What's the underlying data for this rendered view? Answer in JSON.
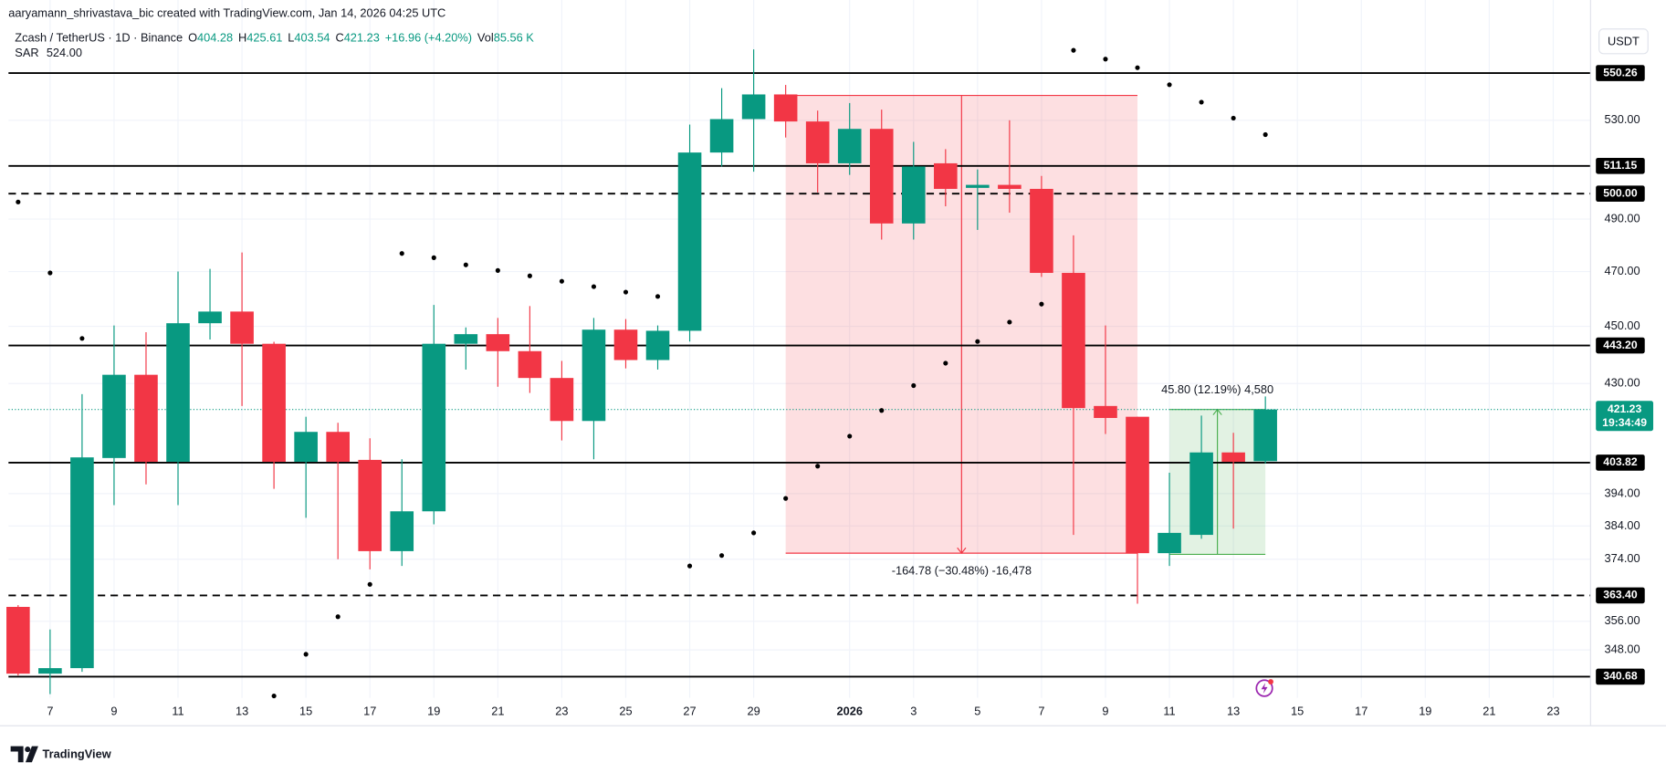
{
  "header": {
    "attribution": "aaryamann_shrivastava_bic created with TradingView.com, Jan 14, 2026 04:25 UTC",
    "symbol": "Zcash / TetherUS · 1D · Binance",
    "ohlc": [
      {
        "key": "O",
        "value": "404.28"
      },
      {
        "key": "H",
        "value": "425.61"
      },
      {
        "key": "L",
        "value": "403.54"
      },
      {
        "key": "C",
        "value": "421.23"
      }
    ],
    "change": "+16.96 (+4.20%)",
    "volume_key": "Vol",
    "volume": "85.56 K",
    "indicator_value": "524.00",
    "currency": "USDT"
  },
  "footer": {
    "brand": "TradingView"
  },
  "chart_data": {
    "type": "candlestick",
    "log_scale": true,
    "grid": true,
    "up_color": "#089981",
    "down_color": "#f23645",
    "categories": [
      null,
      "7",
      null,
      "9",
      null,
      "11",
      null,
      "13",
      null,
      "15",
      null,
      "17",
      null,
      "19",
      null,
      "21",
      null,
      "23",
      null,
      "25",
      null,
      "27",
      null,
      "29",
      null,
      null,
      "2026",
      null,
      "3",
      null,
      "5",
      null,
      "7",
      null,
      "9",
      null,
      "11",
      null,
      "13",
      null,
      "15",
      null,
      "17",
      null,
      "19",
      null,
      "21",
      null,
      "23"
    ],
    "open": [
      360.1,
      341.5,
      343.0,
      405.3,
      433.0,
      404.1,
      451.1,
      455.3,
      443.8,
      404.1,
      413.8,
      404.7,
      376.4,
      388.5,
      443.8,
      447.2,
      441.2,
      431.9,
      417.4,
      448.8,
      438.1,
      448.4,
      516.6,
      530.5,
      541.0,
      529.5,
      512.2,
      526.4,
      488.3,
      512.2,
      502.3,
      503.5,
      501.9,
      469.5,
      422.4,
      418.8,
      375.8,
      381.3,
      407.1,
      404.28,
      null,
      null,
      null,
      null,
      null,
      null,
      null,
      null,
      null
    ],
    "high": [
      360.6,
      353.7,
      426.4,
      450.3,
      447.9,
      470.0,
      471.0,
      477.2,
      444.5,
      418.8,
      416.8,
      411.7,
      404.9,
      457.7,
      449.6,
      453.0,
      457.3,
      437.8,
      453.0,
      452.6,
      450.3,
      528.2,
      543.7,
      560.7,
      545.1,
      534.1,
      537.3,
      534.5,
      521.0,
      518.0,
      509.7,
      530.0,
      507.1,
      483.7,
      450.3,
      418.8,
      400.6,
      419.2,
      413.5,
      425.61,
      null,
      null,
      null,
      null,
      null,
      null,
      null,
      null,
      null
    ],
    "low": [
      341.0,
      336.0,
      342.0,
      390.4,
      396.9,
      390.4,
      445.3,
      422.4,
      395.5,
      386.5,
      374.0,
      371.0,
      372.0,
      384.5,
      434.8,
      428.9,
      426.8,
      411.0,
      404.9,
      435.2,
      434.8,
      444.6,
      510.9,
      508.8,
      522.8,
      500.5,
      507.5,
      482.1,
      482.1,
      495.0,
      485.8,
      492.5,
      468.0,
      381.3,
      413.1,
      361.0,
      372.0,
      380.1,
      383.2,
      403.54,
      null,
      null,
      null,
      null,
      null,
      null,
      null,
      null,
      null
    ],
    "close": [
      341.5,
      343.0,
      405.5,
      433.0,
      404.1,
      451.1,
      455.3,
      443.8,
      404.1,
      413.8,
      404.1,
      376.4,
      388.5,
      443.8,
      447.2,
      441.2,
      431.9,
      417.4,
      448.8,
      438.1,
      448.4,
      516.6,
      530.5,
      541.0,
      529.5,
      512.2,
      526.4,
      488.3,
      510.9,
      501.9,
      503.5,
      501.9,
      469.5,
      421.7,
      418.4,
      375.8,
      381.9,
      407.1,
      404.1,
      421.23,
      null,
      null,
      null,
      null,
      null,
      null,
      null,
      null,
      null
    ],
    "sar": {
      "name": "SAR",
      "color": "#000000",
      "values": [
        496.7,
        469.5,
        445.7,
        null,
        null,
        null,
        null,
        null,
        335.5,
        346.8,
        357.3,
        366.6,
        476.8,
        475.2,
        472.5,
        470.4,
        468.4,
        466.4,
        464.4,
        462.4,
        460.8,
        372.0,
        375.1,
        381.9,
        392.5,
        402.7,
        412.4,
        420.9,
        429.3,
        437.0,
        444.6,
        451.5,
        458.0,
        560.3,
        556.4,
        552.6,
        545.2,
        537.7,
        530.9,
        524.0,
        null,
        null,
        null,
        null,
        null,
        null,
        null,
        null,
        null
      ]
    },
    "ylim": [
      335,
      572.3
    ],
    "yticks": [
      {
        "value": 530,
        "label": "530.00"
      },
      {
        "value": 490,
        "label": "490.00"
      },
      {
        "value": 470,
        "label": "470.00"
      },
      {
        "value": 450,
        "label": "450.00"
      },
      {
        "value": 430,
        "label": "430.00"
      },
      {
        "value": 394,
        "label": "394.00"
      },
      {
        "value": 384,
        "label": "384.00"
      },
      {
        "value": 374,
        "label": "374.00"
      },
      {
        "value": 356,
        "label": "356.00"
      },
      {
        "value": 348,
        "label": "348.00"
      }
    ],
    "levels": [
      {
        "value": 550.26,
        "style": "solid"
      },
      {
        "value": 511.15,
        "style": "solid"
      },
      {
        "value": 500,
        "label": "500.00",
        "style": "dashed"
      },
      {
        "value": 443.2,
        "label": "443.20",
        "style": "solid"
      },
      {
        "value": 403.82,
        "style": "solid"
      },
      {
        "value": 363.4,
        "label": "363.40",
        "style": "dashed"
      },
      {
        "value": 340.68,
        "style": "solid"
      }
    ],
    "last_price": {
      "value": 421.23,
      "countdown": "19:34:49",
      "color": "#089981"
    },
    "measurements": [
      {
        "from_index": 24,
        "to_index": 35,
        "start": 540.58,
        "end": 375.8,
        "label": "-164.78 (−30.48%) -16,478",
        "color": "#f23645"
      },
      {
        "from_index": 36,
        "to_index": 39,
        "start": 375.43,
        "end": 421.23,
        "label": "45.80 (12.19%) 4,580",
        "color": "#4caf50"
      }
    ]
  }
}
